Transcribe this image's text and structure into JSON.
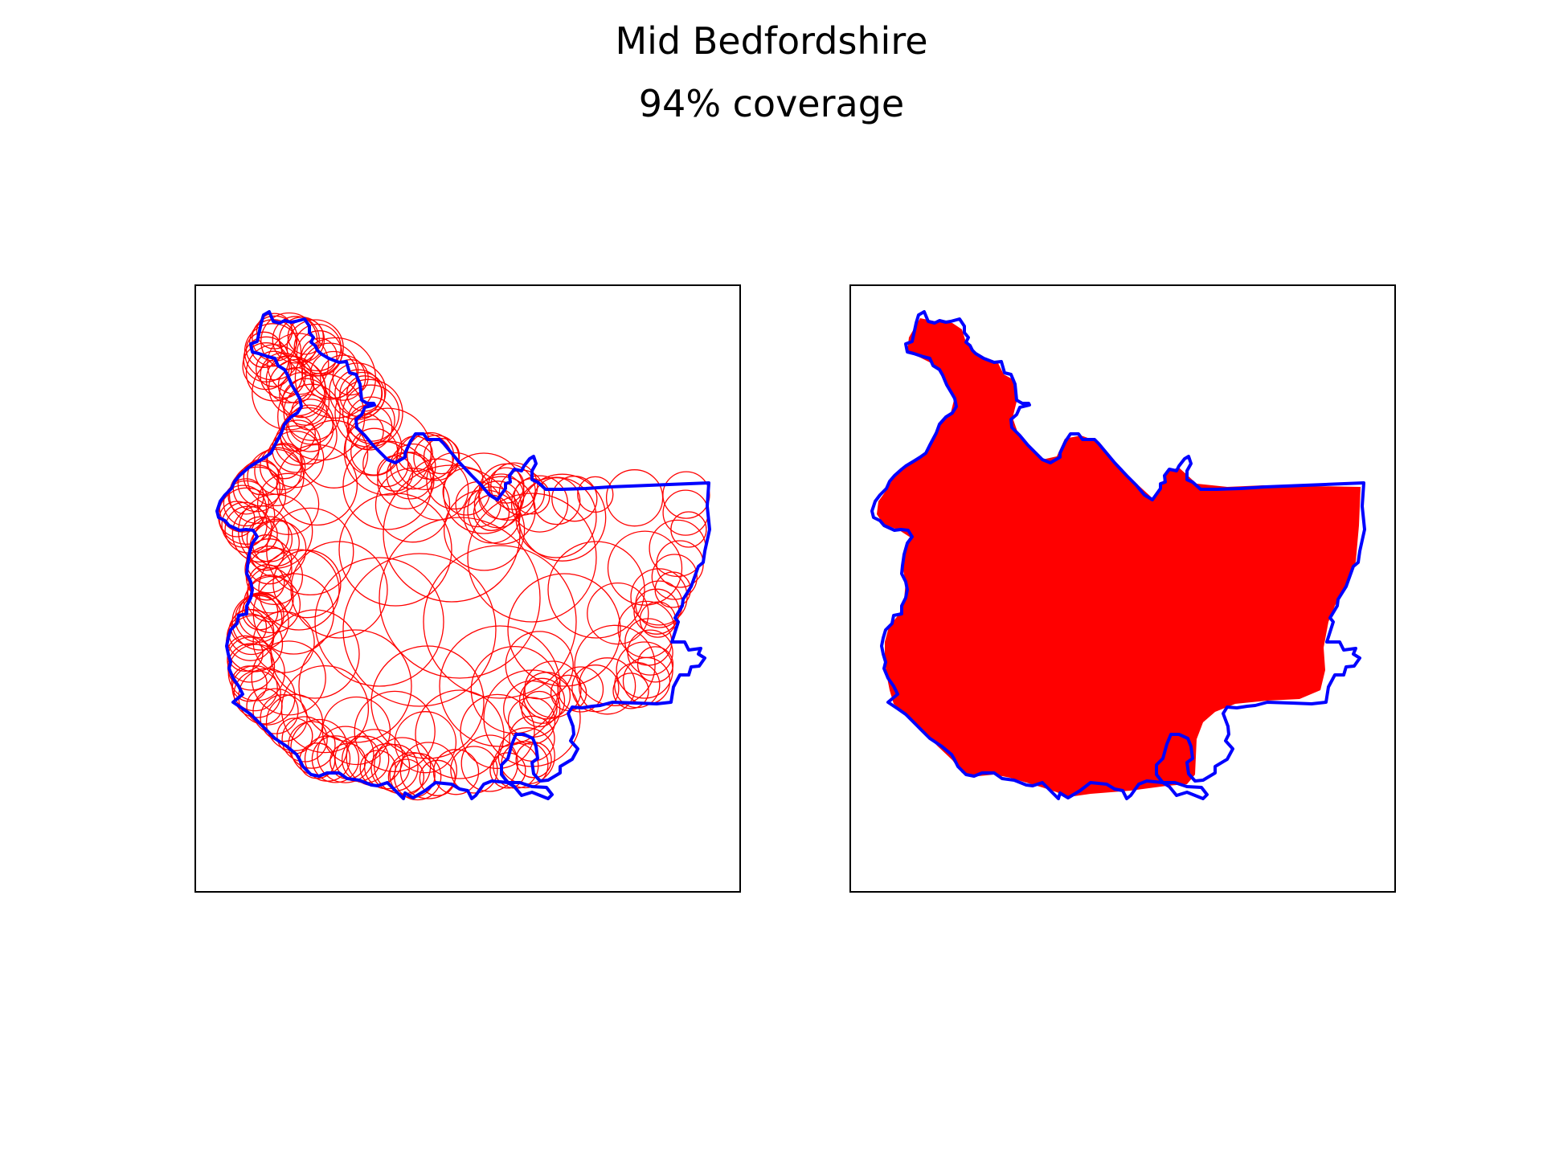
{
  "figure": {
    "title_line_1": "Mid Bedfordshire",
    "title_line_2": "94% coverage",
    "coverage_percent": 94
  },
  "colors": {
    "boundary": "#0000ff",
    "coverage": "#ff0000",
    "frame": "#000000",
    "background": "#ffffff"
  },
  "panels": [
    {
      "name": "circle-coverage-map",
      "content": "individual-circles"
    },
    {
      "name": "filled-coverage-map",
      "content": "union-fill"
    }
  ]
}
